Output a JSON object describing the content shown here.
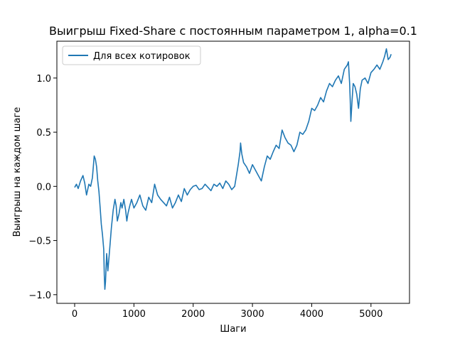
{
  "chart_data": {
    "type": "line",
    "title": "Выигрыш Fixed-Share с постоянным параметром 1, alpha=0.1",
    "xlabel": "Шаги",
    "ylabel": "Выигрыш на каждом шаге",
    "xlim": [
      -300,
      5650
    ],
    "ylim": [
      -1.08,
      1.34
    ],
    "xticks": [
      0,
      1000,
      2000,
      3000,
      4000,
      5000
    ],
    "yticks": [
      -1.0,
      -0.5,
      0.0,
      0.5,
      1.0
    ],
    "xtick_labels": [
      "0",
      "1000",
      "2000",
      "3000",
      "4000",
      "5000"
    ],
    "ytick_labels": [
      "−1.0",
      "−0.5",
      "0.0",
      "0.5",
      "1.0"
    ],
    "grid": false,
    "legend_position": "top-left",
    "series": [
      {
        "name": "Для всех котировок",
        "color": "#1f77b4",
        "x": [
          0,
          30,
          60,
          100,
          140,
          170,
          200,
          240,
          270,
          300,
          330,
          350,
          370,
          390,
          410,
          430,
          450,
          470,
          490,
          500,
          510,
          520,
          540,
          560,
          580,
          600,
          620,
          650,
          680,
          700,
          720,
          750,
          780,
          800,
          830,
          860,
          880,
          900,
          930,
          960,
          1000,
          1050,
          1100,
          1150,
          1200,
          1250,
          1300,
          1350,
          1400,
          1450,
          1500,
          1550,
          1600,
          1650,
          1700,
          1750,
          1800,
          1850,
          1900,
          1950,
          2000,
          2050,
          2100,
          2150,
          2200,
          2250,
          2300,
          2350,
          2400,
          2450,
          2500,
          2550,
          2600,
          2650,
          2700,
          2730,
          2760,
          2790,
          2800,
          2820,
          2850,
          2900,
          2950,
          3000,
          3050,
          3100,
          3150,
          3200,
          3250,
          3300,
          3350,
          3400,
          3450,
          3500,
          3550,
          3600,
          3650,
          3700,
          3750,
          3800,
          3850,
          3900,
          3950,
          4000,
          4050,
          4100,
          4150,
          4200,
          4250,
          4300,
          4350,
          4400,
          4450,
          4500,
          4550,
          4600,
          4620,
          4640,
          4650,
          4660,
          4680,
          4700,
          4730,
          4760,
          4790,
          4820,
          4850,
          4900,
          4950,
          5000,
          5050,
          5100,
          5150,
          5200,
          5230,
          5260,
          5290,
          5320,
          5340
        ],
        "y": [
          -0.01,
          0.02,
          -0.02,
          0.05,
          0.1,
          0.03,
          -0.08,
          0.02,
          0.0,
          0.08,
          0.28,
          0.25,
          0.18,
          0.05,
          -0.05,
          -0.2,
          -0.35,
          -0.45,
          -0.58,
          -0.82,
          -0.95,
          -0.88,
          -0.62,
          -0.78,
          -0.65,
          -0.52,
          -0.38,
          -0.22,
          -0.12,
          -0.18,
          -0.32,
          -0.25,
          -0.15,
          -0.2,
          -0.12,
          -0.22,
          -0.32,
          -0.25,
          -0.18,
          -0.12,
          -0.2,
          -0.15,
          -0.08,
          -0.18,
          -0.22,
          -0.1,
          -0.15,
          0.02,
          -0.08,
          -0.12,
          -0.15,
          -0.18,
          -0.1,
          -0.2,
          -0.15,
          -0.08,
          -0.14,
          -0.02,
          -0.08,
          -0.03,
          0.0,
          0.01,
          -0.03,
          -0.02,
          0.02,
          -0.01,
          -0.04,
          0.02,
          0.0,
          0.03,
          -0.02,
          0.05,
          0.02,
          -0.03,
          0.0,
          0.1,
          0.2,
          0.32,
          0.4,
          0.3,
          0.22,
          0.18,
          0.12,
          0.2,
          0.15,
          0.1,
          0.05,
          0.18,
          0.28,
          0.25,
          0.32,
          0.38,
          0.35,
          0.52,
          0.45,
          0.4,
          0.38,
          0.32,
          0.38,
          0.5,
          0.48,
          0.52,
          0.6,
          0.72,
          0.7,
          0.75,
          0.82,
          0.78,
          0.88,
          0.95,
          0.92,
          0.98,
          1.02,
          0.95,
          1.08,
          1.12,
          1.15,
          0.95,
          0.8,
          0.6,
          0.78,
          0.95,
          0.92,
          0.85,
          0.72,
          0.9,
          0.98,
          1.0,
          0.95,
          1.05,
          1.08,
          1.12,
          1.08,
          1.15,
          1.2,
          1.27,
          1.17,
          1.19,
          1.22
        ]
      }
    ]
  }
}
